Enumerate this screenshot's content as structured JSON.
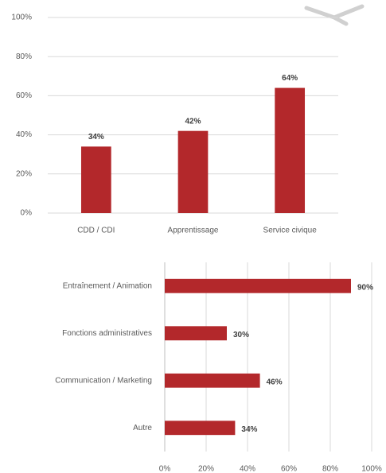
{
  "chart_data": [
    {
      "type": "bar",
      "categories": [
        "CDD / CDI",
        "Apprentissage",
        "Service civique"
      ],
      "values": [
        34,
        42,
        64
      ],
      "value_labels": [
        "34%",
        "42%",
        "64%"
      ],
      "color": "#b3282b",
      "ylim": [
        0,
        100
      ],
      "yticks": [
        {
          "value": 0,
          "label": "0%"
        },
        {
          "value": 20,
          "label": "20%"
        },
        {
          "value": 40,
          "label": "40%"
        },
        {
          "value": 60,
          "label": "60%"
        },
        {
          "value": 80,
          "label": "80%"
        },
        {
          "value": 100,
          "label": "100%"
        }
      ],
      "grid": true
    },
    {
      "type": "hbar",
      "categories": [
        "Entraînement / Animation",
        "Fonctions administratives",
        "Communication / Marketing",
        "Autre"
      ],
      "values": [
        90,
        30,
        46,
        34
      ],
      "value_labels": [
        "90%",
        "30%",
        "46%",
        "34%"
      ],
      "color": "#b3282b",
      "xlim": [
        0,
        100
      ],
      "xticks": [
        {
          "value": 0,
          "label": "0%"
        },
        {
          "value": 20,
          "label": "20%"
        },
        {
          "value": 40,
          "label": "40%"
        },
        {
          "value": 60,
          "label": "60%"
        },
        {
          "value": 80,
          "label": "80%"
        },
        {
          "value": 100,
          "label": "100%"
        }
      ],
      "grid": true
    }
  ]
}
